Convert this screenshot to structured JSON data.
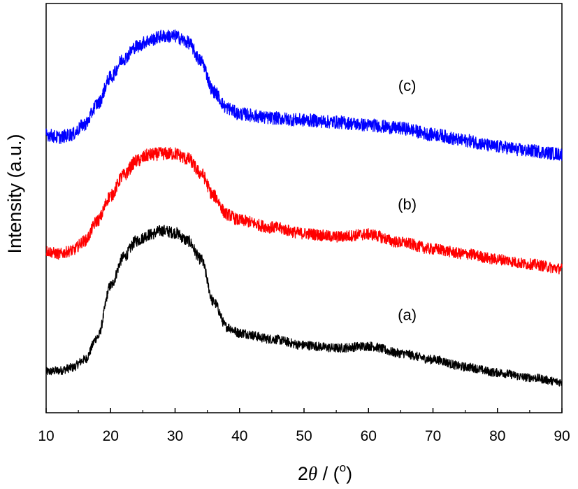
{
  "chart_data": {
    "type": "line",
    "xlabel_prefix": "2",
    "xlabel_symbol": "θ",
    "xlabel_suffix": " / (",
    "xlabel_degree": "o",
    "xlabel_close": ")",
    "ylabel": "Intensity (a.u.)",
    "xlim": [
      10,
      90
    ],
    "x_ticks": [
      10,
      20,
      30,
      40,
      50,
      60,
      70,
      80,
      90
    ],
    "x_tick_labels": [
      "10",
      "20",
      "30",
      "40",
      "50",
      "60",
      "70",
      "80",
      "90"
    ],
    "y_ticks_shown": false,
    "ylim": [
      0,
      100
    ],
    "grid": false,
    "legend": "none",
    "noise_amplitude": 1.6,
    "series": [
      {
        "label": "(a)",
        "color": "#000000",
        "label_x": 66,
        "label_y": 24,
        "points": [
          [
            10,
            10
          ],
          [
            12,
            10.3
          ],
          [
            14,
            11
          ],
          [
            16,
            13
          ],
          [
            18,
            18.5
          ],
          [
            20,
            31
          ],
          [
            22,
            38
          ],
          [
            24,
            42
          ],
          [
            26,
            43.5
          ],
          [
            28,
            44.5
          ],
          [
            30,
            44
          ],
          [
            32,
            42
          ],
          [
            34,
            37.5
          ],
          [
            36,
            27
          ],
          [
            38,
            21
          ],
          [
            40,
            19.5
          ],
          [
            45,
            18
          ],
          [
            50,
            16.5
          ],
          [
            55,
            15.8
          ],
          [
            60,
            16.3
          ],
          [
            65,
            14.5
          ],
          [
            70,
            13
          ],
          [
            75,
            11.2
          ],
          [
            80,
            9.8
          ],
          [
            85,
            8.6
          ],
          [
            90,
            7.5
          ]
        ]
      },
      {
        "label": "(b)",
        "color": "#ff0000",
        "label_x": 66,
        "label_y": 51,
        "points": [
          [
            10,
            39.5
          ],
          [
            12,
            38.8
          ],
          [
            14,
            39.6
          ],
          [
            16,
            42
          ],
          [
            18,
            47
          ],
          [
            20,
            53
          ],
          [
            22,
            58
          ],
          [
            24,
            61.5
          ],
          [
            26,
            63
          ],
          [
            28,
            63.3
          ],
          [
            30,
            63.3
          ],
          [
            32,
            62
          ],
          [
            34,
            58.5
          ],
          [
            36,
            53
          ],
          [
            38,
            48.5
          ],
          [
            40,
            47
          ],
          [
            45,
            45.3
          ],
          [
            50,
            43.8
          ],
          [
            55,
            43
          ],
          [
            60,
            43.6
          ],
          [
            65,
            41.6
          ],
          [
            70,
            40
          ],
          [
            75,
            38.8
          ],
          [
            80,
            37.5
          ],
          [
            85,
            36.3
          ],
          [
            90,
            35.2
          ]
        ]
      },
      {
        "label": "(c)",
        "color": "#0000ff",
        "label_x": 66,
        "label_y": 80,
        "points": [
          [
            10,
            68
          ],
          [
            12,
            67.3
          ],
          [
            14,
            68
          ],
          [
            16,
            70.5
          ],
          [
            18,
            75.5
          ],
          [
            20,
            82
          ],
          [
            22,
            86.5
          ],
          [
            24,
            89.5
          ],
          [
            26,
            91
          ],
          [
            28,
            92
          ],
          [
            30,
            92
          ],
          [
            32,
            90.5
          ],
          [
            34,
            86
          ],
          [
            36,
            78.5
          ],
          [
            38,
            74.5
          ],
          [
            40,
            73
          ],
          [
            45,
            72
          ],
          [
            50,
            71.5
          ],
          [
            55,
            71
          ],
          [
            60,
            70.3
          ],
          [
            65,
            69.5
          ],
          [
            70,
            68
          ],
          [
            75,
            66.5
          ],
          [
            80,
            65
          ],
          [
            85,
            64
          ],
          [
            90,
            63.2
          ]
        ]
      }
    ]
  }
}
